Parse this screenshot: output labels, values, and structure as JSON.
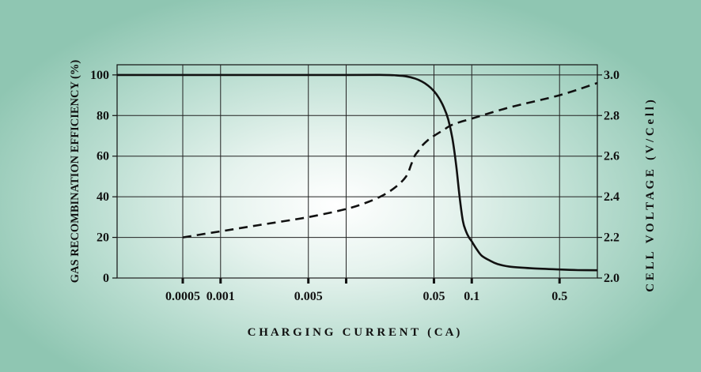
{
  "chart_data": {
    "type": "line",
    "title": "",
    "xlabel": "C H A R G I N G   C U R R E N T   ( C A )",
    "ylabel_left": "GAS RECOMBINATION EFFICIENCY (%)",
    "ylabel_right": "C E L L   V O L T A G E   ( V / C e l l )",
    "x_scale": "log",
    "xlim": [
      0.00015,
      1.0
    ],
    "ylim_left": [
      0,
      105
    ],
    "ylim_right": [
      2.0,
      3.05
    ],
    "x_ticks": [
      {
        "value": 0.0005,
        "label": "0.0005"
      },
      {
        "value": 0.001,
        "label": "0.001"
      },
      {
        "value": 0.005,
        "label": "0.005"
      },
      {
        "value": 0.05,
        "label": "0.05"
      },
      {
        "value": 0.1,
        "label": "0.1"
      },
      {
        "value": 0.5,
        "label": "0.5"
      }
    ],
    "x_gridlines": [
      0.0005,
      0.001,
      0.005,
      0.01,
      0.05,
      0.1,
      0.5
    ],
    "y_left_ticks": [
      {
        "value": 0,
        "label": "0"
      },
      {
        "value": 20,
        "label": "20"
      },
      {
        "value": 40,
        "label": "40"
      },
      {
        "value": 60,
        "label": "60"
      },
      {
        "value": 80,
        "label": "80"
      },
      {
        "value": 100,
        "label": "100"
      }
    ],
    "y_right_ticks": [
      {
        "value": 2.0,
        "label": "2.0"
      },
      {
        "value": 2.2,
        "label": "2.2"
      },
      {
        "value": 2.4,
        "label": "2.4"
      },
      {
        "value": 2.6,
        "label": "2.6"
      },
      {
        "value": 2.8,
        "label": "2.8"
      },
      {
        "value": 3.0,
        "label": "3.0"
      }
    ],
    "grid": true,
    "series": [
      {
        "axis": "left",
        "style": "solid",
        "x": [
          0.00015,
          0.001,
          0.01,
          0.02,
          0.025,
          0.03,
          0.035,
          0.04,
          0.045,
          0.05,
          0.055,
          0.06,
          0.065,
          0.07,
          0.075,
          0.08,
          0.085,
          0.09,
          0.095,
          0.1,
          0.11,
          0.12,
          0.14,
          0.16,
          0.2,
          0.3,
          0.5,
          0.7,
          1.0
        ],
        "values": [
          100,
          100,
          100,
          100,
          99.8,
          99.3,
          98.3,
          96.8,
          94.7,
          92,
          88.5,
          84,
          78,
          69,
          56,
          40,
          28,
          23,
          20,
          18,
          14,
          11,
          8.5,
          6.9,
          5.6,
          4.8,
          4.2,
          3.9,
          3.8
        ]
      },
      {
        "axis": "right",
        "style": "dashed",
        "x": [
          0.0005,
          0.001,
          0.002,
          0.005,
          0.01,
          0.015,
          0.02,
          0.025,
          0.03,
          0.033,
          0.035,
          0.038,
          0.04,
          0.045,
          0.05,
          0.06,
          0.07,
          0.1,
          0.2,
          0.5,
          1.0
        ],
        "values": [
          2.2,
          2.23,
          2.26,
          2.3,
          2.34,
          2.375,
          2.41,
          2.45,
          2.5,
          2.56,
          2.6,
          2.63,
          2.65,
          2.68,
          2.7,
          2.73,
          2.755,
          2.785,
          2.84,
          2.9,
          2.96
        ]
      }
    ]
  }
}
